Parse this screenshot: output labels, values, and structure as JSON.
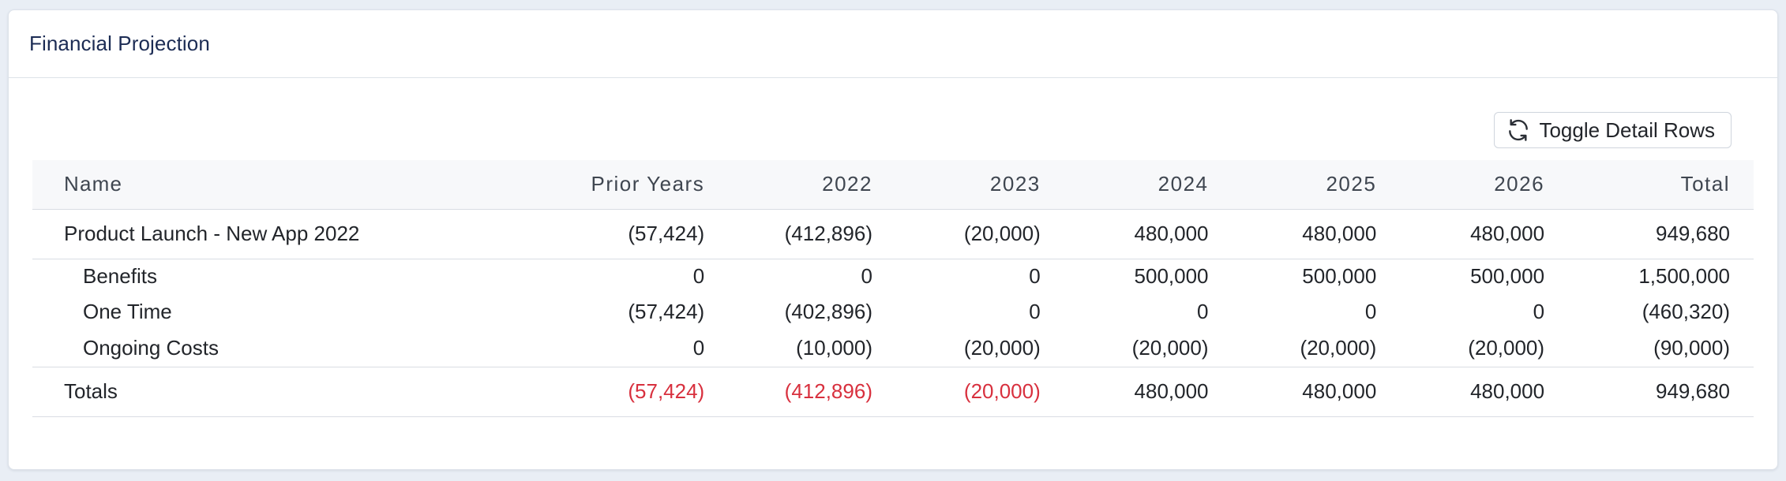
{
  "header": {
    "title": "Financial Projection"
  },
  "toolbar": {
    "toggle_label": "Toggle Detail Rows",
    "toggle_icon": "refresh-icon"
  },
  "colors": {
    "title": "#1c2c54",
    "negative_total": "#d8303e",
    "header_bg": "#f7f8fa"
  },
  "table": {
    "columns": [
      "Name",
      "Prior Years",
      "2022",
      "2023",
      "2024",
      "2025",
      "2026",
      "Total"
    ],
    "summary_row": {
      "name": "Product Launch - New App 2022",
      "values": [
        "(57,424)",
        "(412,896)",
        "(20,000)",
        "480,000",
        "480,000",
        "480,000",
        "949,680"
      ]
    },
    "detail_rows": [
      {
        "name": "Benefits",
        "values": [
          "0",
          "0",
          "0",
          "500,000",
          "500,000",
          "500,000",
          "1,500,000"
        ]
      },
      {
        "name": "One Time",
        "values": [
          "(57,424)",
          "(402,896)",
          "0",
          "0",
          "0",
          "0",
          "(460,320)"
        ]
      },
      {
        "name": "Ongoing Costs",
        "values": [
          "0",
          "(10,000)",
          "(20,000)",
          "(20,000)",
          "(20,000)",
          "(20,000)",
          "(90,000)"
        ]
      }
    ],
    "totals_row": {
      "name": "Totals",
      "values": [
        "(57,424)",
        "(412,896)",
        "(20,000)",
        "480,000",
        "480,000",
        "480,000",
        "949,680"
      ],
      "negative_flags": [
        true,
        true,
        true,
        false,
        false,
        false,
        false
      ]
    }
  }
}
